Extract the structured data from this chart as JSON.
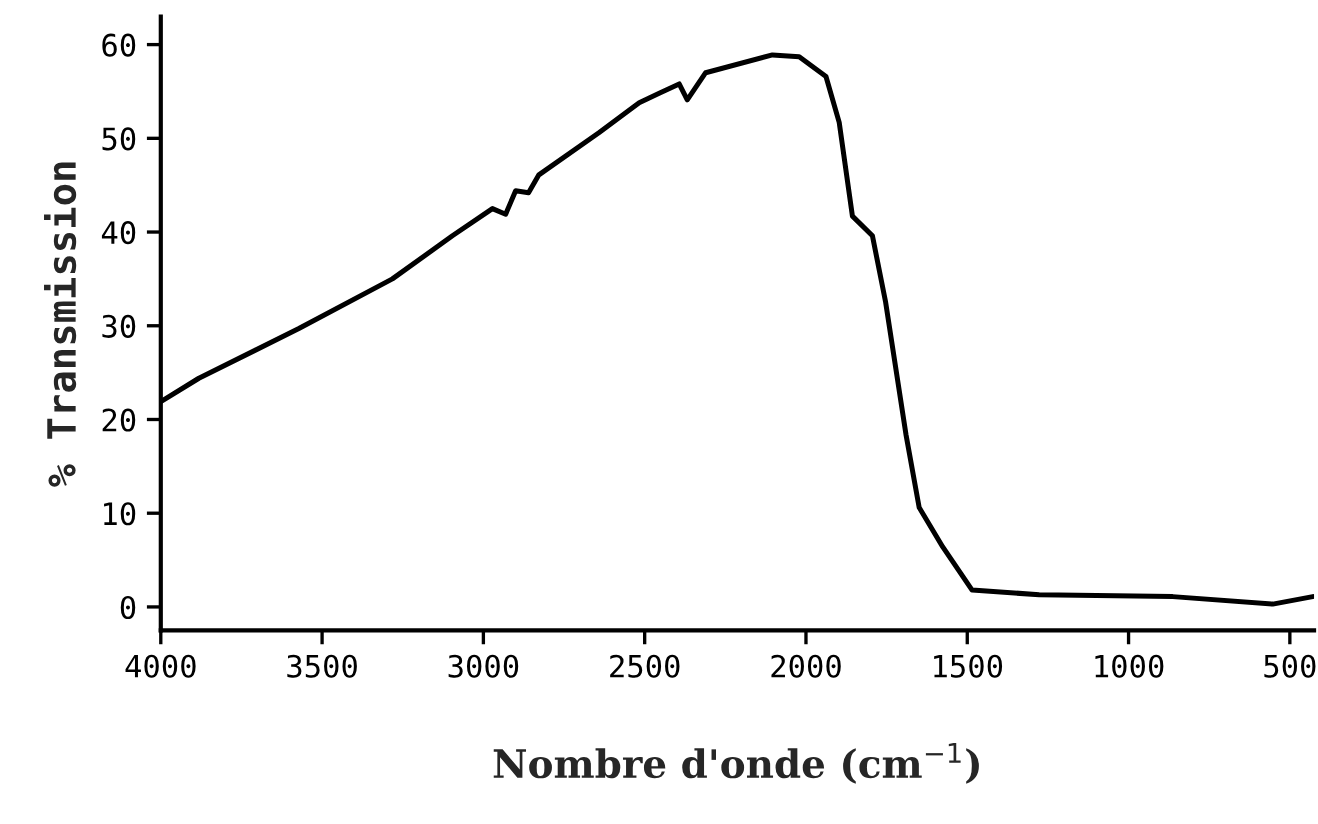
{
  "chart_data": {
    "type": "line",
    "xlabel": "Nombre d'onde (cm$^{−1}$)",
    "ylabel": "% Transmission",
    "xlim": [
      4000,
      425
    ],
    "ylim": [
      -2.5,
      63
    ],
    "xticks": [
      4000,
      3500,
      3000,
      2500,
      2000,
      1500,
      1000,
      500
    ],
    "yticks": [
      0,
      10,
      20,
      30,
      40,
      50,
      60
    ],
    "grid": false,
    "marker": "none",
    "line_style": "solid",
    "series": [
      {
        "color": "#000000",
        "x": [
          4000,
          3882,
          3572,
          3282,
          3096,
          2972,
          2931,
          2900,
          2860,
          2828,
          2642,
          2517,
          2455,
          2393,
          2368,
          2311,
          2104,
          2021,
          1938,
          1897,
          1856,
          1794,
          1753,
          1690,
          1649,
          1576,
          1485,
          1277,
          863,
          553,
          429
        ],
        "values": [
          21.9,
          24.4,
          29.7,
          35.0,
          39.6,
          42.5,
          41.9,
          44.4,
          44.2,
          46.1,
          50.6,
          53.8,
          54.8,
          55.8,
          54.1,
          57.0,
          58.9,
          58.7,
          56.6,
          51.7,
          41.7,
          39.6,
          32.5,
          18.4,
          10.6,
          6.4,
          1.8,
          1.3,
          1.1,
          0.3,
          1.1
        ]
      }
    ]
  }
}
